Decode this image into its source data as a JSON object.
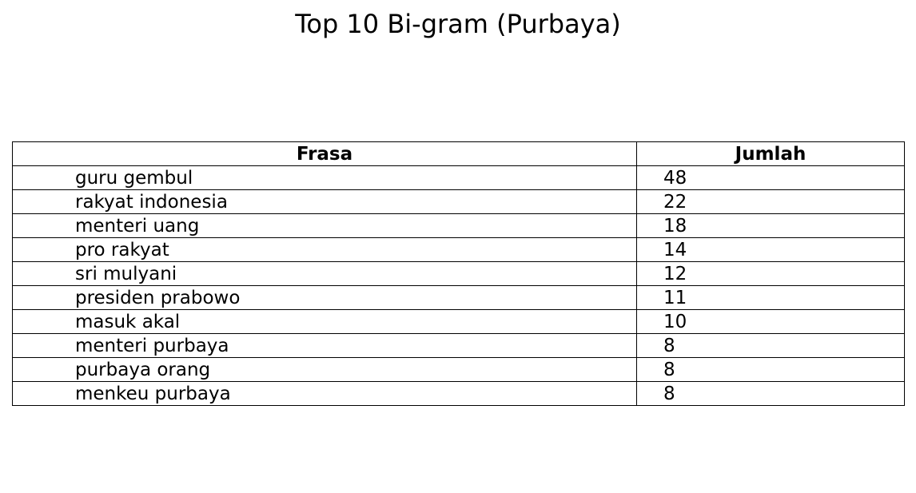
{
  "chart_data": {
    "type": "table",
    "title": "Top 10 Bi-gram (Purbaya)",
    "columns": [
      "Frasa",
      "Jumlah"
    ],
    "rows": [
      {
        "frasa": "guru gembul",
        "jumlah": "48"
      },
      {
        "frasa": "rakyat indonesia",
        "jumlah": "22"
      },
      {
        "frasa": "menteri uang",
        "jumlah": "18"
      },
      {
        "frasa": "pro rakyat",
        "jumlah": "14"
      },
      {
        "frasa": "sri mulyani",
        "jumlah": "12"
      },
      {
        "frasa": "presiden prabowo",
        "jumlah": "11"
      },
      {
        "frasa": "masuk akal",
        "jumlah": "10"
      },
      {
        "frasa": "menteri purbaya",
        "jumlah": "8"
      },
      {
        "frasa": "purbaya orang",
        "jumlah": "8"
      },
      {
        "frasa": "menkeu purbaya",
        "jumlah": "8"
      }
    ]
  }
}
